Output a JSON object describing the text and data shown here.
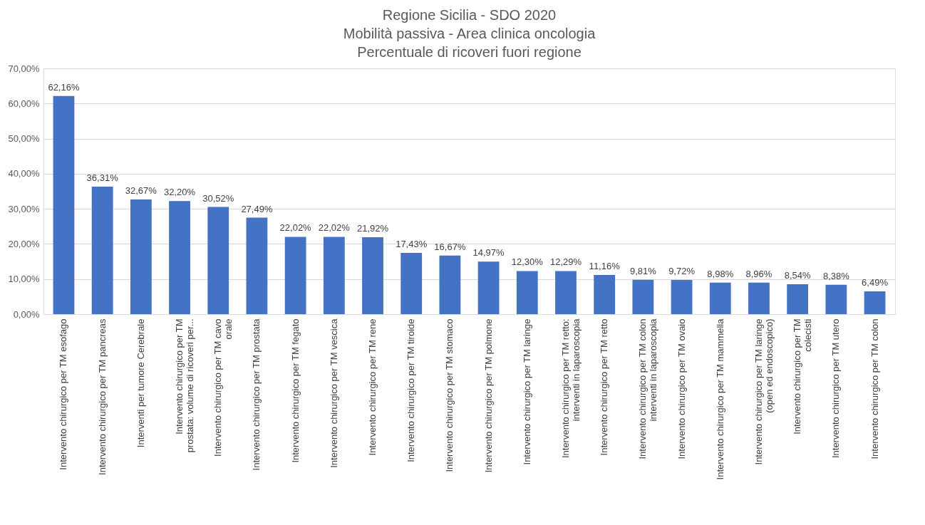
{
  "chart_data": {
    "type": "bar",
    "title": "Regione Sicilia - SDO 2020\nMobilità passiva - Area clinica oncologia\nPercentuale di ricoveri fuori regione",
    "categories": [
      "Intervento chirurgico per TM esofago",
      "Intervento chirurgico per TM pancreas",
      "Interventi per tumore Cerebrale",
      "Intervento chirurgico per TM prostata: volume di ricoveri per...",
      "Intervento chirurgico per TM cavo orale",
      "Intervento chirurgico per TM prostata",
      "Intervento chirurgico per TM fegato",
      "Intervento chirurgico per TM vescica",
      "Intervento chirurgico per TM rene",
      "Intervento chirurgico per TM tiroide",
      "Intervento chirurgico per TM stomaco",
      "Intervento chirurgico per TM polmone",
      "Intervento chirurgico per TM laringe",
      "Intervento chirurgico per TM retto: interventi in laparoscopia",
      "Intervento chirurgico per TM retto",
      "Intervento chirurgico per TM colon interventi in laparoscopia",
      "Intervento chirurgico per TM ovaio",
      "Intervento chirurgico per TM mammella",
      "Intervento chirurgico per TM laringe (open ed endoscopico)",
      "Intervento chirurgico per TM colecisti",
      "Intervento chirurgico per TM utero",
      "Intervento chirurgico per TM colon"
    ],
    "values": [
      62.16,
      36.31,
      32.67,
      32.2,
      30.52,
      27.49,
      22.02,
      22.02,
      21.92,
      17.43,
      16.67,
      14.97,
      12.3,
      12.29,
      11.16,
      9.81,
      9.72,
      8.98,
      8.96,
      8.54,
      8.38,
      6.49
    ],
    "value_labels": [
      "62,16%",
      "36,31%",
      "32,67%",
      "32,20%",
      "30,52%",
      "27,49%",
      "22,02%",
      "22,02%",
      "21,92%",
      "17,43%",
      "16,67%",
      "14,97%",
      "12,30%",
      "12,29%",
      "11,16%",
      "9,81%",
      "9,72%",
      "8,98%",
      "8,96%",
      "8,54%",
      "8,38%",
      "6,49%"
    ],
    "color": "#4472c4",
    "ylim": [
      0,
      70
    ],
    "yticks": [
      {
        "value": 0,
        "label": "0,00%"
      },
      {
        "value": 10,
        "label": "10,00%"
      },
      {
        "value": 20,
        "label": "20,00%"
      },
      {
        "value": 30,
        "label": "30,00%"
      },
      {
        "value": 40,
        "label": "40,00%"
      },
      {
        "value": 50,
        "label": "50,00%"
      },
      {
        "value": 60,
        "label": "60,00%"
      },
      {
        "value": 70,
        "label": "70,00%"
      }
    ],
    "grid": "y"
  }
}
